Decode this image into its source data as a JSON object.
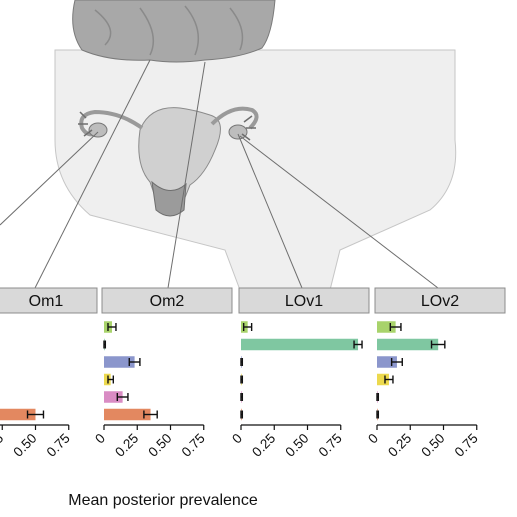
{
  "x_axis_title": "Mean posterior prevalence",
  "panels": [
    "Om1",
    "Om2",
    "LOv1",
    "LOv2"
  ],
  "ticks": [
    "0",
    "0.25",
    "0.50",
    "0.75"
  ],
  "colors": {
    "strip_fill": "#d9d9d9",
    "strip_stroke": "#8c8c8c",
    "anatomy_fill": "#e6e6e6",
    "anatomy_dark": "#9a9a9a",
    "leader_line": "#6e6e6e"
  },
  "chart_data": {
    "type": "bar",
    "orientation": "horizontal",
    "xlabel": "Mean posterior prevalence",
    "xlim": [
      0,
      1
    ],
    "xticks": [
      0,
      0.25,
      0.5,
      0.75
    ],
    "error_bars": true,
    "series_colors": [
      "#a8d36b",
      "#7fc7a1",
      "#8b96cc",
      "#ecd94e",
      "#d98cc4",
      "#e38860"
    ],
    "panels": [
      {
        "name": "Om1",
        "values": [
          null,
          null,
          null,
          null,
          null,
          0.5
        ],
        "err": [
          null,
          null,
          null,
          null,
          null,
          0.06
        ]
      },
      {
        "name": "Om2",
        "values": [
          0.06,
          0.005,
          0.23,
          0.05,
          0.14,
          0.35
        ],
        "err": [
          0.03,
          0.005,
          0.04,
          0.02,
          0.04,
          0.05
        ]
      },
      {
        "name": "LOv1",
        "values": [
          0.05,
          0.88,
          0.005,
          0.005,
          0.005,
          0.005
        ],
        "err": [
          0.03,
          0.03,
          0.005,
          0.005,
          0.005,
          0.005
        ]
      },
      {
        "name": "LOv2",
        "values": [
          0.14,
          0.46,
          0.15,
          0.09,
          0.005,
          0.005
        ],
        "err": [
          0.04,
          0.05,
          0.04,
          0.03,
          0.005,
          0.005
        ]
      }
    ]
  }
}
